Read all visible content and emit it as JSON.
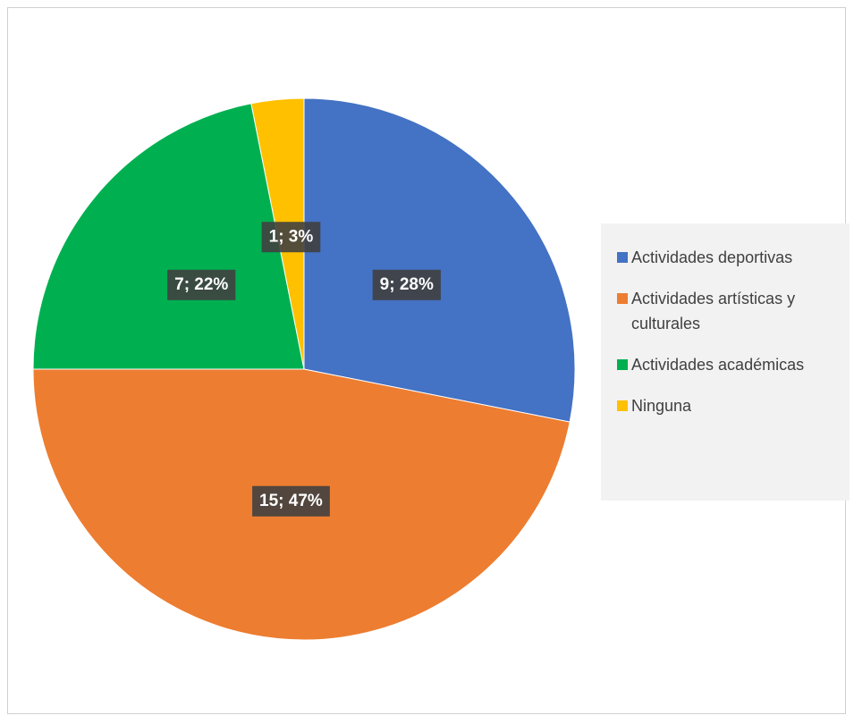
{
  "chart_data": {
    "type": "pie",
    "categories": [
      "Actividades deportivas",
      "Actividades artísticas y culturales",
      "Actividades académicas",
      "Ninguna"
    ],
    "values": [
      9,
      15,
      7,
      1
    ],
    "value_labels": [
      "9; 28%",
      "15; 47%",
      "7; 22%",
      "1; 3%"
    ],
    "colors": [
      "#4472c4",
      "#ed7d31",
      "#00b050",
      "#ffc000"
    ],
    "legend": "right"
  }
}
